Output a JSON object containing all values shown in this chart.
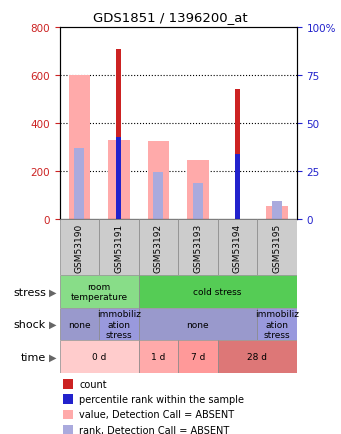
{
  "title": "GDS1851 / 1396200_at",
  "samples": [
    "GSM53190",
    "GSM53191",
    "GSM53192",
    "GSM53193",
    "GSM53194",
    "GSM53195"
  ],
  "count_values": [
    0,
    710,
    0,
    0,
    540,
    0
  ],
  "rank_values": [
    0,
    340,
    0,
    0,
    270,
    0
  ],
  "absent_value_values": [
    600,
    330,
    325,
    245,
    0,
    55
  ],
  "absent_rank_values": [
    295,
    0,
    195,
    150,
    0,
    75
  ],
  "ylim": [
    0,
    800
  ],
  "yticks": [
    0,
    200,
    400,
    600,
    800
  ],
  "y2ticks": [
    0,
    25,
    50,
    75,
    100
  ],
  "y2labels": [
    "0",
    "25",
    "50",
    "75",
    "100%"
  ],
  "stress_groups": [
    {
      "label": "room\ntemperature",
      "start": 0,
      "end": 2,
      "color": "#88dd88"
    },
    {
      "label": "cold stress",
      "start": 2,
      "end": 6,
      "color": "#55cc55"
    }
  ],
  "shock_groups": [
    {
      "label": "none",
      "start": 0,
      "end": 1,
      "color": "#9999cc"
    },
    {
      "label": "immobiliz\nation\nstress",
      "start": 1,
      "end": 2,
      "color": "#9999dd"
    },
    {
      "label": "none",
      "start": 2,
      "end": 5,
      "color": "#9999cc"
    },
    {
      "label": "immobiliz\nation\nstress",
      "start": 5,
      "end": 6,
      "color": "#9999dd"
    }
  ],
  "time_groups": [
    {
      "label": "0 d",
      "start": 0,
      "end": 2,
      "color": "#ffcccc"
    },
    {
      "label": "1 d",
      "start": 2,
      "end": 3,
      "color": "#ffaaaa"
    },
    {
      "label": "7 d",
      "start": 3,
      "end": 4,
      "color": "#ff9999"
    },
    {
      "label": "28 d",
      "start": 4,
      "end": 6,
      "color": "#dd7777"
    }
  ],
  "legend_items": [
    {
      "color": "#cc2222",
      "label": "count"
    },
    {
      "color": "#2222cc",
      "label": "percentile rank within the sample"
    },
    {
      "color": "#ffaaaa",
      "label": "value, Detection Call = ABSENT"
    },
    {
      "color": "#aaaadd",
      "label": "rank, Detection Call = ABSENT"
    }
  ],
  "left_axis_color": "#cc2222",
  "right_axis_color": "#2222cc",
  "count_color": "#cc2222",
  "rank_color": "#2222cc",
  "absent_value_color": "#ffaaaa",
  "absent_rank_color": "#aaaadd",
  "sample_box_color": "#cccccc",
  "sample_box_edge": "#888888"
}
